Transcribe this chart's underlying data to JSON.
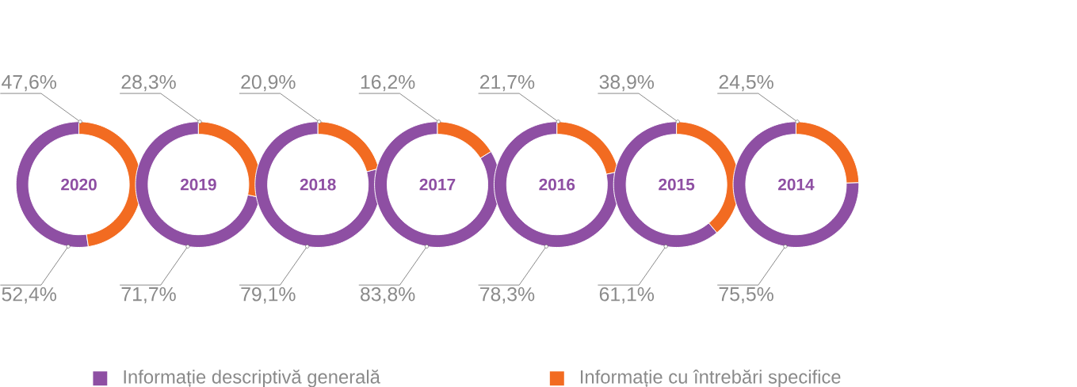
{
  "chart_data": [
    {
      "type": "donut",
      "title": "2020",
      "categories": [
        "Informație descriptivă generală",
        "Informație cu întrebări specifice"
      ],
      "values": [
        52.4,
        47.6
      ],
      "colors": [
        "#8e4fa3",
        "#f26b21"
      ],
      "value_labels": [
        "52,4%",
        "47,6%"
      ],
      "legend": "bottom"
    },
    {
      "type": "donut",
      "title": "2019",
      "categories": [
        null,
        null
      ],
      "values": [
        71.7,
        28.3
      ],
      "colors": [
        "#8e4fa3",
        "#f26b21"
      ],
      "value_labels": [
        "71,7%",
        "28,3%"
      ]
    },
    {
      "type": "donut",
      "title": "2018",
      "categories": [
        null,
        null
      ],
      "values": [
        79.1,
        20.9
      ],
      "colors": [
        "#8e4fa3",
        "#f26b21"
      ],
      "value_labels": [
        "79,1%",
        "20,9%"
      ]
    },
    {
      "type": "donut",
      "title": "2017",
      "categories": [
        null,
        null
      ],
      "values": [
        83.8,
        16.2
      ],
      "colors": [
        "#8e4fa3",
        "#f26b21"
      ],
      "value_labels": [
        "83,8%",
        "16,2%"
      ]
    },
    {
      "type": "donut",
      "title": "2016",
      "categories": [
        null,
        null
      ],
      "values": [
        78.3,
        21.7
      ],
      "colors": [
        "#8e4fa3",
        "#f26b21"
      ],
      "value_labels": [
        "78,3%",
        "21,7%"
      ]
    },
    {
      "type": "donut",
      "title": "2015",
      "categories": [
        null,
        null
      ],
      "values": [
        61.1,
        38.9
      ],
      "colors": [
        "#8e4fa3",
        "#f26b21"
      ],
      "value_labels": [
        "61,1%",
        "38,9%"
      ]
    },
    {
      "type": "donut",
      "title": "2014",
      "categories": [
        null,
        null
      ],
      "values": [
        75.5,
        24.5
      ],
      "colors": [
        "#8e4fa3",
        "#f26b21"
      ],
      "value_labels": [
        "75,5%",
        "24,5%"
      ]
    }
  ]
}
